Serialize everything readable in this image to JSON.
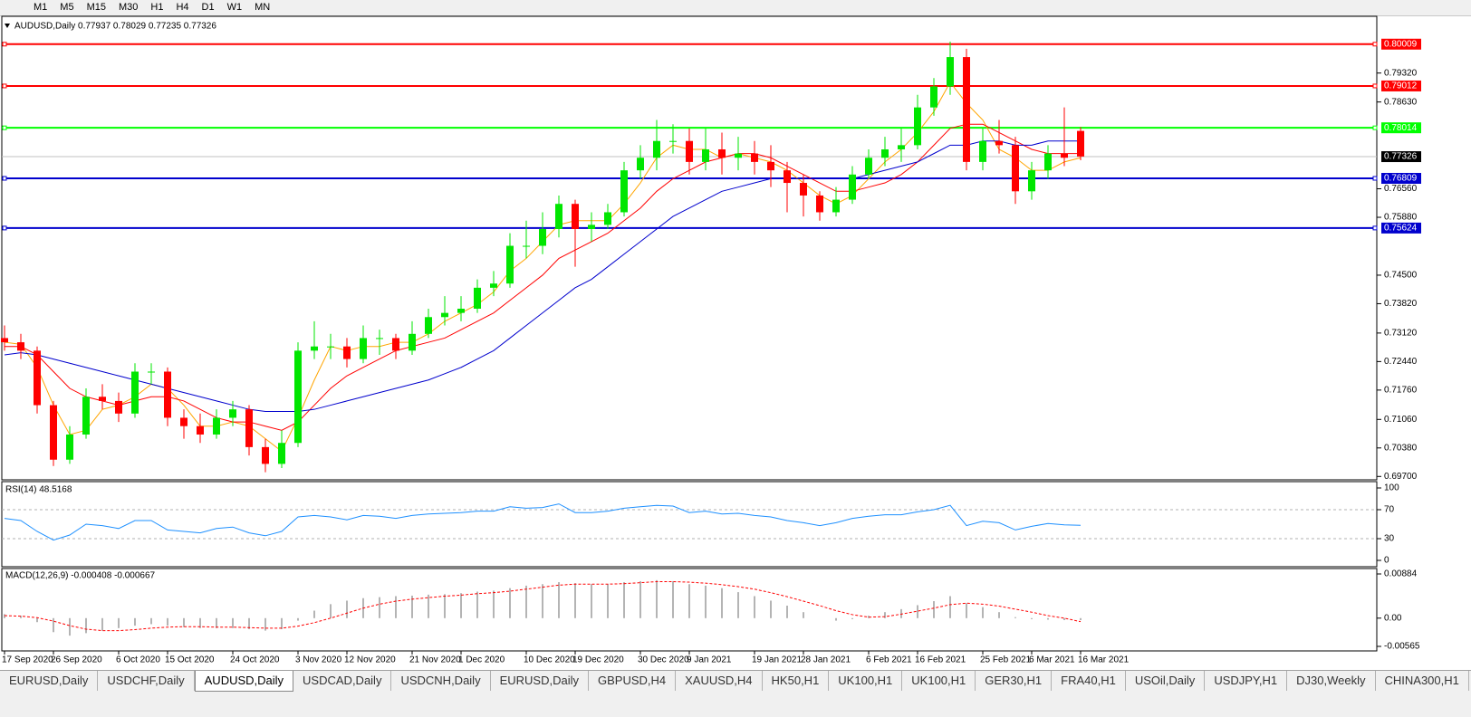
{
  "toolbar": {
    "buttons": [
      "M1",
      "M5",
      "M15",
      "M30",
      "H1",
      "H4",
      "D1",
      "W1",
      "MN"
    ]
  },
  "chart_data": [
    {
      "type": "candlestick",
      "title": "AUDUSD,Daily  0.77937 0.78029 0.77235 0.77326",
      "categories": [
        "17 Sep 2020",
        null,
        null,
        "26 Sep 2020",
        null,
        null,
        null,
        "6 Oct 2020",
        null,
        null,
        "15 Oct 2020",
        null,
        null,
        null,
        "24 Oct 2020",
        null,
        null,
        null,
        "3 Nov 2020",
        null,
        null,
        "12 Nov 2020",
        null,
        null,
        null,
        "21 Nov 2020",
        null,
        null,
        "1 Dec 2020",
        null,
        null,
        null,
        "10 Dec 2020",
        null,
        null,
        "19 Dec 2020",
        null,
        null,
        null,
        "30 Dec 2020",
        null,
        null,
        "9 Jan 2021",
        null,
        null,
        null,
        "19 Jan 2021",
        null,
        null,
        "28 Jan 2021",
        null,
        null,
        null,
        "6 Feb 2021",
        null,
        null,
        "16 Feb 2021",
        null,
        null,
        null,
        "25 Feb 2021",
        null,
        null,
        "6 Mar 2021",
        null,
        null,
        "16 Mar 2021"
      ],
      "candles": [
        [
          0.73,
          0.733,
          0.727,
          0.729
        ],
        [
          0.729,
          0.731,
          0.725,
          0.727
        ],
        [
          0.727,
          0.728,
          0.712,
          0.714
        ],
        [
          0.714,
          0.715,
          0.6995,
          0.701
        ],
        [
          0.701,
          0.709,
          0.7,
          0.707
        ],
        [
          0.707,
          0.718,
          0.706,
          0.716
        ],
        [
          0.716,
          0.719,
          0.713,
          0.715
        ],
        [
          0.715,
          0.717,
          0.71,
          0.712
        ],
        [
          0.712,
          0.724,
          0.711,
          0.722
        ],
        [
          0.722,
          0.724,
          0.719,
          0.722
        ],
        [
          0.722,
          0.723,
          0.709,
          0.711
        ],
        [
          0.711,
          0.713,
          0.706,
          0.709
        ],
        [
          0.709,
          0.712,
          0.705,
          0.707
        ],
        [
          0.707,
          0.713,
          0.706,
          0.711
        ],
        [
          0.711,
          0.715,
          0.709,
          0.713
        ],
        [
          0.713,
          0.714,
          0.702,
          0.704
        ],
        [
          0.704,
          0.706,
          0.698,
          0.7
        ],
        [
          0.7,
          0.708,
          0.699,
          0.705
        ],
        [
          0.705,
          0.729,
          0.704,
          0.727
        ],
        [
          0.727,
          0.734,
          0.725,
          0.728
        ],
        [
          0.728,
          0.731,
          0.725,
          0.728
        ],
        [
          0.728,
          0.73,
          0.723,
          0.725
        ],
        [
          0.725,
          0.733,
          0.724,
          0.73
        ],
        [
          0.73,
          0.732,
          0.726,
          0.73
        ],
        [
          0.73,
          0.731,
          0.725,
          0.727
        ],
        [
          0.727,
          0.734,
          0.726,
          0.731
        ],
        [
          0.731,
          0.737,
          0.73,
          0.735
        ],
        [
          0.735,
          0.74,
          0.733,
          0.736
        ],
        [
          0.736,
          0.74,
          0.734,
          0.737
        ],
        [
          0.737,
          0.744,
          0.736,
          0.742
        ],
        [
          0.742,
          0.746,
          0.74,
          0.743
        ],
        [
          0.743,
          0.755,
          0.742,
          0.752
        ],
        [
          0.752,
          0.758,
          0.749,
          0.752
        ],
        [
          0.752,
          0.76,
          0.75,
          0.756
        ],
        [
          0.756,
          0.764,
          0.754,
          0.762
        ],
        [
          0.762,
          0.763,
          0.747,
          0.756
        ],
        [
          0.756,
          0.76,
          0.753,
          0.757
        ],
        [
          0.757,
          0.762,
          0.756,
          0.76
        ],
        [
          0.76,
          0.772,
          0.759,
          0.77
        ],
        [
          0.77,
          0.776,
          0.768,
          0.773
        ],
        [
          0.773,
          0.782,
          0.77,
          0.777
        ],
        [
          0.777,
          0.781,
          0.774,
          0.777
        ],
        [
          0.777,
          0.78,
          0.769,
          0.772
        ],
        [
          0.772,
          0.78,
          0.77,
          0.775
        ],
        [
          0.775,
          0.779,
          0.769,
          0.773
        ],
        [
          0.773,
          0.778,
          0.77,
          0.774
        ],
        [
          0.774,
          0.777,
          0.769,
          0.772
        ],
        [
          0.772,
          0.776,
          0.766,
          0.77
        ],
        [
          0.77,
          0.772,
          0.76,
          0.767
        ],
        [
          0.767,
          0.769,
          0.759,
          0.764
        ],
        [
          0.764,
          0.765,
          0.758,
          0.76
        ],
        [
          0.76,
          0.766,
          0.759,
          0.763
        ],
        [
          0.763,
          0.771,
          0.762,
          0.769
        ],
        [
          0.769,
          0.775,
          0.768,
          0.773
        ],
        [
          0.773,
          0.778,
          0.771,
          0.775
        ],
        [
          0.775,
          0.78,
          0.772,
          0.776
        ],
        [
          0.776,
          0.788,
          0.775,
          0.785
        ],
        [
          0.785,
          0.792,
          0.783,
          0.79
        ],
        [
          0.79,
          0.8007,
          0.788,
          0.797
        ],
        [
          0.797,
          0.799,
          0.77,
          0.772
        ],
        [
          0.772,
          0.78,
          0.77,
          0.777
        ],
        [
          0.777,
          0.782,
          0.774,
          0.776
        ],
        [
          0.776,
          0.778,
          0.762,
          0.765
        ],
        [
          0.765,
          0.772,
          0.763,
          0.77
        ],
        [
          0.77,
          0.776,
          0.768,
          0.774
        ],
        [
          0.774,
          0.785,
          0.771,
          0.773
        ],
        [
          0.7794,
          0.7803,
          0.7724,
          0.7733
        ]
      ],
      "series": [
        {
          "color": "#ffa500",
          "values": [
            0.729,
            0.7285,
            0.723,
            0.714,
            0.707,
            0.708,
            0.713,
            0.714,
            0.716,
            0.719,
            0.718,
            0.714,
            0.709,
            0.709,
            0.71,
            0.709,
            0.706,
            0.703,
            0.711,
            0.72,
            0.728,
            0.727,
            0.728,
            0.728,
            0.729,
            0.729,
            0.731,
            0.734,
            0.736,
            0.738,
            0.741,
            0.746,
            0.749,
            0.753,
            0.757,
            0.758,
            0.758,
            0.758,
            0.762,
            0.767,
            0.773,
            0.776,
            0.775,
            0.775,
            0.773,
            0.774,
            0.773,
            0.772,
            0.77,
            0.767,
            0.764,
            0.762,
            0.764,
            0.768,
            0.772,
            0.775,
            0.779,
            0.784,
            0.791,
            0.786,
            0.782,
            0.775,
            0.773,
            0.77,
            0.77,
            0.772,
            0.773
          ]
        },
        {
          "color": "#ff0000",
          "values": [
            0.728,
            0.728,
            0.726,
            0.722,
            0.718,
            0.716,
            0.715,
            0.714,
            0.715,
            0.716,
            0.716,
            0.715,
            0.713,
            0.711,
            0.71,
            0.71,
            0.709,
            0.708,
            0.71,
            0.714,
            0.718,
            0.721,
            0.723,
            0.725,
            0.727,
            0.728,
            0.729,
            0.73,
            0.732,
            0.734,
            0.736,
            0.739,
            0.742,
            0.745,
            0.749,
            0.751,
            0.753,
            0.755,
            0.758,
            0.761,
            0.765,
            0.768,
            0.77,
            0.772,
            0.773,
            0.774,
            0.774,
            0.773,
            0.771,
            0.769,
            0.767,
            0.765,
            0.765,
            0.766,
            0.767,
            0.769,
            0.772,
            0.776,
            0.78,
            0.781,
            0.781,
            0.779,
            0.777,
            0.775,
            0.774,
            0.774,
            0.774
          ]
        },
        {
          "color": "#0000cd",
          "values": [
            0.726,
            0.7265,
            0.726,
            0.725,
            0.724,
            0.723,
            0.722,
            0.721,
            0.72,
            0.719,
            0.718,
            0.717,
            0.716,
            0.715,
            0.714,
            0.713,
            0.7125,
            0.7125,
            0.7125,
            0.713,
            0.714,
            0.715,
            0.716,
            0.717,
            0.718,
            0.719,
            0.72,
            0.7215,
            0.723,
            0.725,
            0.727,
            0.73,
            0.733,
            0.736,
            0.739,
            0.742,
            0.744,
            0.747,
            0.75,
            0.753,
            0.756,
            0.759,
            0.761,
            0.763,
            0.765,
            0.766,
            0.767,
            0.768,
            0.768,
            0.768,
            0.768,
            0.768,
            0.768,
            0.769,
            0.77,
            0.771,
            0.772,
            0.774,
            0.776,
            0.776,
            0.777,
            0.777,
            0.776,
            0.776,
            0.777,
            0.777,
            0.777
          ]
        }
      ],
      "levels": [
        {
          "value": 0.80009,
          "color": "#ff0000"
        },
        {
          "value": 0.79012,
          "color": "#ff0000"
        },
        {
          "value": 0.78014,
          "color": "#00ff00"
        },
        {
          "value": 0.76809,
          "color": "#0000cd"
        },
        {
          "value": 0.75624,
          "color": "#0000cd"
        }
      ],
      "current": 0.77326,
      "ylim": [
        0.6962,
        0.8063
      ],
      "yticks": [
        {
          "value": 0.7932,
          "label": "0.79320"
        },
        {
          "value": 0.7863,
          "label": "0.78630"
        },
        {
          "value": 0.7656,
          "label": "0.76560"
        },
        {
          "value": 0.7588,
          "label": "0.75880"
        },
        {
          "value": 0.745,
          "label": "0.74500"
        },
        {
          "value": 0.7382,
          "label": "0.73820"
        },
        {
          "value": 0.7312,
          "label": "0.73120"
        },
        {
          "value": 0.7244,
          "label": "0.72440"
        },
        {
          "value": 0.7176,
          "label": "0.71760"
        },
        {
          "value": 0.7106,
          "label": "0.71060"
        },
        {
          "value": 0.7038,
          "label": "0.70380"
        },
        {
          "value": 0.697,
          "label": "0.69700"
        }
      ]
    },
    {
      "type": "line",
      "title": "RSI(14) 48.5168",
      "series": [
        {
          "color": "#1e90ff",
          "values": [
            58,
            55,
            40,
            28,
            35,
            50,
            48,
            44,
            55,
            55,
            42,
            40,
            38,
            44,
            46,
            38,
            34,
            40,
            60,
            62,
            60,
            56,
            62,
            61,
            58,
            62,
            64,
            65,
            66,
            68,
            68,
            74,
            72,
            73,
            78,
            66,
            66,
            68,
            72,
            74,
            76,
            75,
            66,
            68,
            64,
            65,
            62,
            60,
            55,
            52,
            48,
            52,
            58,
            61,
            63,
            63,
            67,
            70,
            76,
            48,
            54,
            52,
            42,
            47,
            51,
            49,
            48.5
          ]
        }
      ],
      "levels": [
        70,
        30
      ],
      "ylim": [
        0,
        100
      ],
      "yticks": [
        100,
        70,
        30,
        0
      ]
    },
    {
      "type": "macd",
      "title": "MACD(12,26,9) -0.000408 -0.000667",
      "histogram": {
        "color": "#b4b4b4",
        "values": [
          0.0008,
          0.0005,
          -0.0008,
          -0.0028,
          -0.0035,
          -0.003,
          -0.0025,
          -0.002,
          -0.0015,
          -0.0012,
          -0.0015,
          -0.0018,
          -0.002,
          -0.002,
          -0.002,
          -0.0022,
          -0.0025,
          -0.0022,
          -0.0005,
          0.0015,
          0.0028,
          0.0035,
          0.004,
          0.0042,
          0.0044,
          0.0045,
          0.0047,
          0.0048,
          0.005,
          0.0053,
          0.0055,
          0.006,
          0.0065,
          0.0068,
          0.0072,
          0.007,
          0.0068,
          0.0068,
          0.0072,
          0.0074,
          0.0076,
          0.0074,
          0.0068,
          0.0065,
          0.006,
          0.0052,
          0.0044,
          0.0035,
          0.0025,
          0.0012,
          0,
          -0.0005,
          -0.0002,
          0.0005,
          0.0012,
          0.0018,
          0.0026,
          0.0034,
          0.0044,
          0.003,
          0.0022,
          0.0012,
          0.0002,
          -0.0002,
          -0.0003,
          -0.0004,
          -0.0004
        ]
      },
      "signal": {
        "color": "#ff0000",
        "values": [
          0.0005,
          0.0004,
          0.0001,
          -0.0006,
          -0.0015,
          -0.0022,
          -0.0025,
          -0.0025,
          -0.0023,
          -0.002,
          -0.0018,
          -0.0017,
          -0.0017,
          -0.0018,
          -0.0018,
          -0.0019,
          -0.002,
          -0.002,
          -0.0016,
          -0.0009,
          0,
          0.001,
          0.002,
          0.0028,
          0.0034,
          0.0038,
          0.0041,
          0.0044,
          0.0046,
          0.0049,
          0.0051,
          0.0054,
          0.0058,
          0.0062,
          0.0066,
          0.0068,
          0.0068,
          0.0068,
          0.0069,
          0.0071,
          0.0073,
          0.0073,
          0.0072,
          0.007,
          0.0067,
          0.0063,
          0.0058,
          0.0051,
          0.0043,
          0.0034,
          0.0025,
          0.0015,
          0.0007,
          0.0002,
          0.0003,
          0.0008,
          0.0014,
          0.002,
          0.0027,
          0.003,
          0.0028,
          0.0024,
          0.0018,
          0.0012,
          0.0005,
          0,
          -0.0007
        ]
      },
      "ylim": [
        -0.00565,
        0.00884
      ],
      "yticks": [
        0.00884,
        {
          "value": 0,
          "label": "0.00"
        },
        -0.00565
      ]
    }
  ],
  "tabs": [
    {
      "label": "EURUSD,Daily"
    },
    {
      "label": "USDCHF,Daily"
    },
    {
      "label": "AUDUSD,Daily",
      "active": true
    },
    {
      "label": "USDCAD,Daily"
    },
    {
      "label": "USDCNH,Daily"
    },
    {
      "label": "EURUSD,Daily"
    },
    {
      "label": "GBPUSD,H4"
    },
    {
      "label": "XAUUSD,H4"
    },
    {
      "label": "HK50,H1"
    },
    {
      "label": "UK100,H1"
    },
    {
      "label": "UK100,H1"
    },
    {
      "label": "GER30,H1"
    },
    {
      "label": "FRA40,H1"
    },
    {
      "label": "USOil,Daily"
    },
    {
      "label": "USDJPY,H1"
    },
    {
      "label": "DJ30,Weekly"
    },
    {
      "label": "CHINA300,H1"
    }
  ]
}
